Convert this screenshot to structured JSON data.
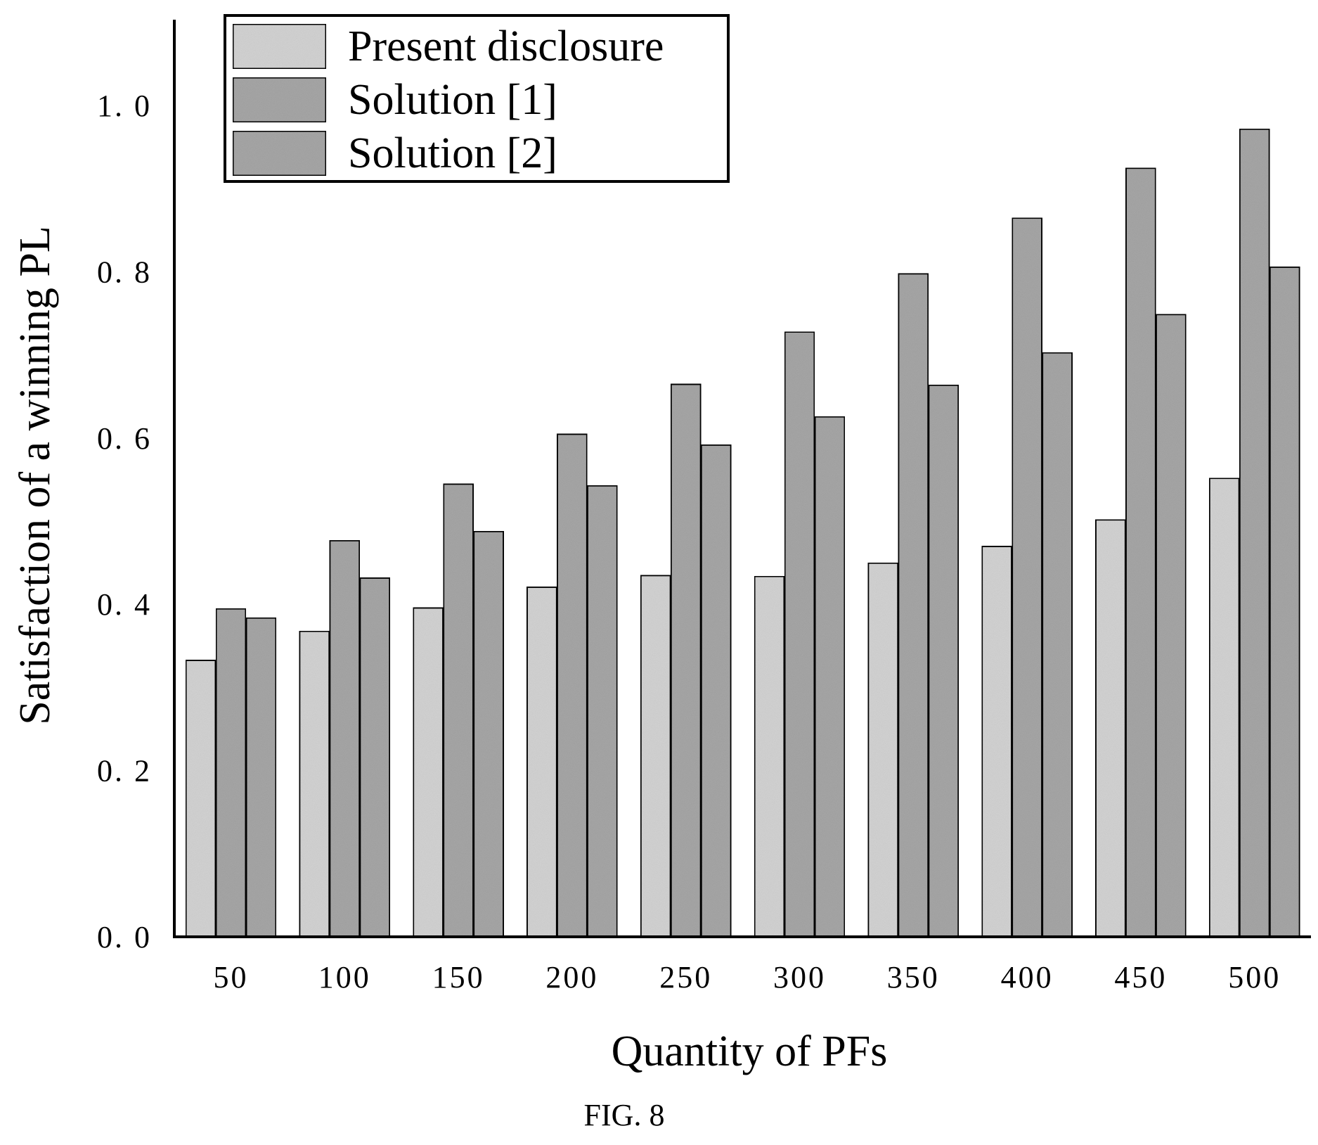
{
  "chart_data": {
    "type": "bar",
    "categories": [
      "50",
      "100",
      "150",
      "200",
      "250",
      "300",
      "350",
      "400",
      "450",
      "500"
    ],
    "series": [
      {
        "name": "Present disclosure",
        "values": [
          0.333,
          0.368,
          0.396,
          0.421,
          0.435,
          0.434,
          0.45,
          0.47,
          0.502,
          0.552
        ]
      },
      {
        "name": "Solution [1]",
        "values": [
          0.395,
          0.477,
          0.545,
          0.605,
          0.665,
          0.728,
          0.798,
          0.865,
          0.925,
          0.972
        ]
      },
      {
        "name": "Solution [2]",
        "values": [
          0.384,
          0.432,
          0.488,
          0.543,
          0.592,
          0.626,
          0.664,
          0.703,
          0.749,
          0.806
        ]
      }
    ],
    "xlabel": "Quantity of PFs",
    "ylabel": "Satisfaction of a winning PL",
    "ylim": [
      0,
      1.1
    ],
    "yticks": [
      "0. 0",
      "0. 2",
      "0. 4",
      "0. 6",
      "0. 8",
      "1. 0"
    ],
    "legend_position": "top-left",
    "grid": false,
    "colors": {
      "Present disclosure": "#d6d6d6",
      "Solution [1]": "#a9a9a9",
      "Solution [2]": "#a9a9a9",
      "axis": "#000000"
    }
  },
  "caption": "FIG. 8"
}
